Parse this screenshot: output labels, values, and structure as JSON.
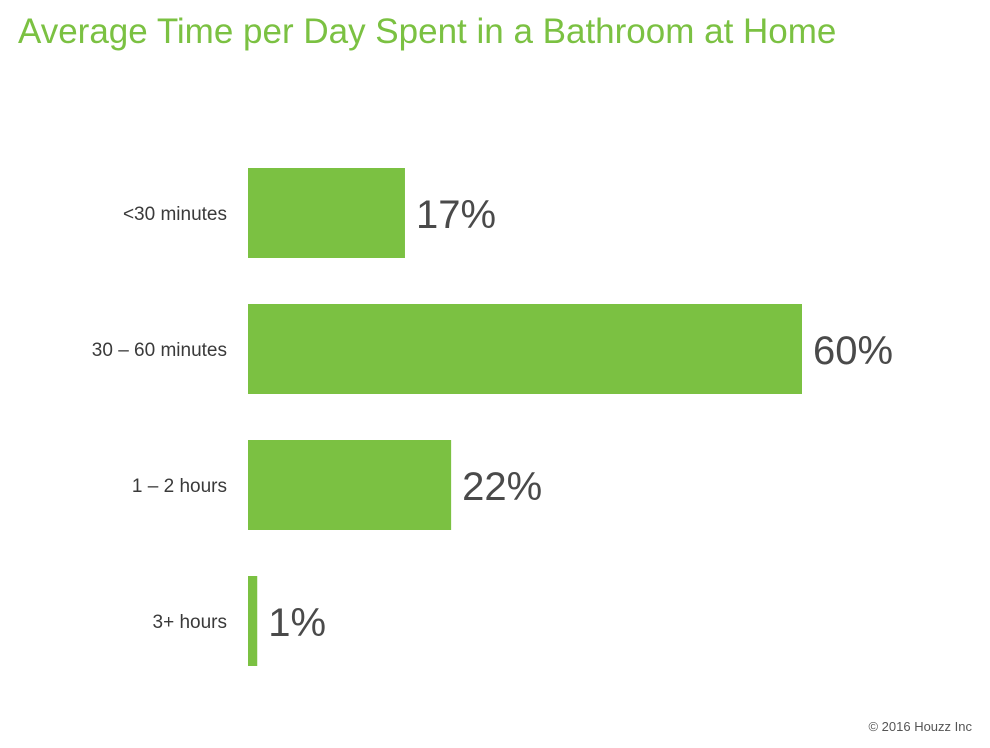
{
  "title": "Average Time per Day Spent in a Bathroom at Home",
  "copyright": "© 2016 Houzz Inc",
  "colors": {
    "title": "#7bc142",
    "bar": "#7bc142",
    "category_text": "#3a3a3a",
    "value_text": "#4a4a4a"
  },
  "chart_data": {
    "type": "bar",
    "orientation": "horizontal",
    "categories": [
      "<30 minutes",
      "30 – 60 minutes",
      "1 – 2 hours",
      "3+ hours"
    ],
    "values": [
      17,
      60,
      22,
      1
    ],
    "value_labels": [
      "17%",
      "60%",
      "22%",
      "1%"
    ],
    "unit": "%",
    "xlim": [
      0,
      60
    ],
    "grid": false,
    "legend": "none"
  }
}
